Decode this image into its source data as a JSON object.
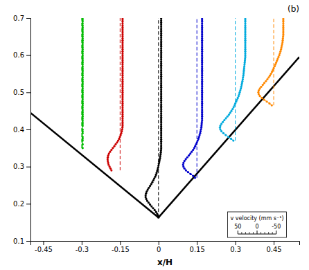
{
  "chart_data": {
    "type": "line",
    "title": "(b)",
    "xlabel": "x/H",
    "xlim": [
      -0.5,
      0.55
    ],
    "ylim": [
      0.1,
      0.7
    ],
    "xticks": [
      -0.45,
      -0.3,
      -0.15,
      0,
      0.15,
      0.3,
      0.45
    ],
    "yticks": [
      0.1,
      0.2,
      0.3,
      0.4,
      0.5,
      0.6,
      0.7
    ],
    "series": [
      {
        "color": "#000000",
        "line_style": "solid",
        "x": [
          -0.5,
          0.0
        ],
        "values": [
          0.445,
          0.163
        ]
      },
      {
        "color": "#000000",
        "line_style": "solid",
        "x": [
          0.0,
          0.55
        ],
        "values": [
          0.163,
          0.595
        ]
      },
      {
        "color": "#00bb00",
        "line_style": "dashed",
        "x": [
          -0.3,
          -0.3
        ],
        "values": [
          0.35,
          0.7
        ]
      },
      {
        "color": "#00bb00",
        "line_style": "solid",
        "marker": "circle",
        "x": [
          -0.29625,
          -0.29625,
          -0.29625,
          -0.29625,
          -0.29625,
          -0.29625,
          -0.29625,
          -0.29625,
          -0.29625,
          -0.29625,
          -0.29625,
          -0.29625,
          -0.29625,
          -0.29625,
          -0.29625,
          -0.29625,
          -0.29625,
          -0.29625,
          -0.29625,
          -0.29625,
          -0.29625,
          -0.29625,
          -0.29625,
          -0.29625,
          -0.29625,
          -0.29625,
          -0.29625,
          -0.29625,
          -0.29625,
          -0.29625,
          -0.29625,
          -0.29625,
          -0.29625,
          -0.29625,
          -0.29625,
          -0.29625,
          -0.29625,
          -0.29625,
          -0.29625,
          -0.29625,
          -0.29625,
          -0.29625,
          -0.29625,
          -0.29625,
          -0.29625,
          -0.29625,
          -0.29625,
          -0.29625,
          -0.29625,
          -0.29625,
          -0.29625,
          -0.29625,
          -0.29625,
          -0.29625,
          -0.29625,
          -0.29625,
          -0.29625,
          -0.29625,
          -0.29625,
          -0.29625,
          -0.29625,
          -0.29625,
          -0.29625,
          -0.29625,
          -0.29625,
          -0.29625,
          -0.29625
        ],
        "values": [
          0.35,
          0.36,
          0.37,
          0.375,
          0.38,
          0.39,
          0.395,
          0.4,
          0.41,
          0.415,
          0.42,
          0.425,
          0.43,
          0.435,
          0.44,
          0.445,
          0.45,
          0.455,
          0.46,
          0.465,
          0.47,
          0.475,
          0.48,
          0.485,
          0.49,
          0.495,
          0.5,
          0.505,
          0.51,
          0.515,
          0.52,
          0.525,
          0.53,
          0.535,
          0.54,
          0.545,
          0.55,
          0.555,
          0.56,
          0.565,
          0.57,
          0.575,
          0.58,
          0.585,
          0.59,
          0.595,
          0.6,
          0.605,
          0.61,
          0.615,
          0.62,
          0.625,
          0.63,
          0.635,
          0.64,
          0.645,
          0.65,
          0.655,
          0.66,
          0.665,
          0.67,
          0.675,
          0.68,
          0.685,
          0.69,
          0.695,
          0.7
        ]
      },
      {
        "color": "#cc0000",
        "line_style": "dashed",
        "x": [
          -0.15,
          -0.15
        ],
        "values": [
          0.29,
          0.7
        ]
      },
      {
        "color": "#cc0000",
        "line_style": "solid",
        "marker": "circle",
        "x": [
          -0.18375,
          -0.1875,
          -0.19125,
          -0.195,
          -0.1965,
          -0.198,
          -0.19875,
          -0.198,
          -0.1965,
          -0.1935,
          -0.189,
          -0.18375,
          -0.1785,
          -0.1725,
          -0.16725,
          -0.162,
          -0.1575,
          -0.15375,
          -0.15075,
          -0.14775,
          -0.1455,
          -0.14325,
          -0.14175,
          -0.141,
          -0.14025,
          -0.14025,
          -0.14025,
          -0.14025,
          -0.14025,
          -0.14025,
          -0.14025,
          -0.14025,
          -0.14025,
          -0.14025,
          -0.14025,
          -0.14025,
          -0.14025,
          -0.14025,
          -0.14025,
          -0.14025,
          -0.14025,
          -0.14025,
          -0.14025,
          -0.14025,
          -0.14025,
          -0.14025,
          -0.14025,
          -0.14025,
          -0.14025,
          -0.14025,
          -0.14025,
          -0.14025,
          -0.14025,
          -0.14025,
          -0.14025,
          -0.14025,
          -0.14025,
          -0.14025,
          -0.14025,
          -0.14025,
          -0.14025,
          -0.14025,
          -0.14025,
          -0.14025,
          -0.14025,
          -0.14025,
          -0.14025,
          -0.14025,
          -0.14025,
          -0.14025,
          -0.14025,
          -0.14025,
          -0.14025,
          -0.14025,
          -0.14025,
          -0.14025,
          -0.14025,
          -0.14025,
          -0.14025,
          -0.14025,
          -0.14025,
          -0.14025,
          -0.14025
        ],
        "values": [
          0.29,
          0.295,
          0.3,
          0.305,
          0.31,
          0.315,
          0.32,
          0.325,
          0.33,
          0.335,
          0.34,
          0.345,
          0.35,
          0.355,
          0.36,
          0.365,
          0.37,
          0.375,
          0.38,
          0.385,
          0.39,
          0.395,
          0.4,
          0.405,
          0.41,
          0.415,
          0.42,
          0.425,
          0.43,
          0.435,
          0.44,
          0.445,
          0.45,
          0.455,
          0.46,
          0.465,
          0.47,
          0.475,
          0.48,
          0.485,
          0.49,
          0.495,
          0.5,
          0.505,
          0.51,
          0.515,
          0.52,
          0.525,
          0.53,
          0.535,
          0.54,
          0.545,
          0.55,
          0.555,
          0.56,
          0.565,
          0.57,
          0.575,
          0.58,
          0.585,
          0.59,
          0.595,
          0.6,
          0.605,
          0.61,
          0.615,
          0.62,
          0.625,
          0.63,
          0.635,
          0.64,
          0.645,
          0.65,
          0.655,
          0.66,
          0.665,
          0.67,
          0.675,
          0.68,
          0.685,
          0.69,
          0.695,
          0.7
        ]
      },
      {
        "color": "#000000",
        "line_style": "dashed",
        "x": [
          0.0,
          0.0
        ],
        "values": [
          0.163,
          0.7
        ]
      },
      {
        "color": "#000000",
        "line_style": "solid",
        "marker": "circle",
        "x": [
          0,
          -0.00225,
          -0.00525,
          -0.00975,
          -0.015,
          -0.021,
          -0.027,
          -0.033,
          -0.039,
          -0.04425,
          -0.048,
          -0.05025,
          -0.05025,
          -0.04875,
          -0.04575,
          -0.042,
          -0.0375,
          -0.033,
          -0.0285,
          -0.024,
          -0.02025,
          -0.0165,
          -0.01275,
          -0.00975,
          -0.0075,
          -0.00525,
          -0.003,
          -0.0015,
          0,
          0.0015,
          0.003,
          0.0045,
          0.006,
          0.00675,
          0.00825,
          0.009,
          0.00975,
          0.0105,
          0.0105,
          0.0105,
          0.0105,
          0.0105,
          0.0105,
          0.0105,
          0.0105,
          0.0105,
          0.0105,
          0.0105,
          0.0105,
          0.0105,
          0.0105,
          0.0105,
          0.0105,
          0.0105,
          0.0105,
          0.0105,
          0.0105,
          0.0105,
          0.0105,
          0.0105,
          0.0105,
          0.0105,
          0.0105,
          0.0105,
          0.0105,
          0.0105,
          0.0105,
          0.0105,
          0.0105,
          0.0105,
          0.0105,
          0.0105,
          0.0105,
          0.0105,
          0.0105,
          0.0105,
          0.0105,
          0.0105,
          0.0105,
          0.0105,
          0.0105,
          0.0105,
          0.0105,
          0.0105,
          0.0105,
          0.0105,
          0.0105,
          0.0105,
          0.0105,
          0.0105,
          0.0105,
          0.0105,
          0.0105,
          0.0105,
          0.0105,
          0.0105,
          0.0105,
          0.0105,
          0.0105,
          0.0105,
          0.0105,
          0.0105,
          0.0105,
          0.0105,
          0.0105,
          0.0105,
          0.0105,
          0.0105
        ],
        "values": [
          0.163,
          0.168,
          0.173,
          0.178,
          0.183,
          0.188,
          0.193,
          0.198,
          0.203,
          0.208,
          0.213,
          0.218,
          0.223,
          0.228,
          0.233,
          0.238,
          0.243,
          0.248,
          0.253,
          0.258,
          0.263,
          0.268,
          0.273,
          0.278,
          0.283,
          0.288,
          0.293,
          0.298,
          0.303,
          0.308,
          0.313,
          0.318,
          0.323,
          0.328,
          0.333,
          0.338,
          0.343,
          0.348,
          0.353,
          0.358,
          0.363,
          0.368,
          0.373,
          0.378,
          0.383,
          0.388,
          0.393,
          0.398,
          0.403,
          0.408,
          0.413,
          0.418,
          0.423,
          0.428,
          0.433,
          0.438,
          0.443,
          0.448,
          0.453,
          0.458,
          0.463,
          0.468,
          0.473,
          0.478,
          0.483,
          0.488,
          0.493,
          0.498,
          0.503,
          0.508,
          0.513,
          0.518,
          0.523,
          0.528,
          0.533,
          0.538,
          0.543,
          0.548,
          0.553,
          0.558,
          0.563,
          0.568,
          0.573,
          0.578,
          0.583,
          0.588,
          0.593,
          0.598,
          0.603,
          0.608,
          0.613,
          0.618,
          0.623,
          0.628,
          0.633,
          0.638,
          0.643,
          0.648,
          0.653,
          0.658,
          0.663,
          0.668,
          0.673,
          0.678,
          0.683,
          0.688,
          0.693,
          0.698
        ]
      },
      {
        "color": "#0000cc",
        "line_style": "dashed",
        "x": [
          0.15,
          0.15
        ],
        "values": [
          0.27,
          0.7
        ]
      },
      {
        "color": "#0000cc",
        "line_style": "solid",
        "marker": "circle",
        "x": [
          0.1425,
          0.135,
          0.12525,
          0.1155,
          0.10725,
          0.10125,
          0.0975,
          0.096,
          0.0975,
          0.10125,
          0.1065,
          0.1125,
          0.1185,
          0.1245,
          0.12975,
          0.135,
          0.1395,
          0.14325,
          0.147,
          0.15,
          0.153,
          0.156,
          0.15825,
          0.1605,
          0.16275,
          0.16425,
          0.16575,
          0.16725,
          0.168,
          0.16875,
          0.1695,
          0.17025,
          0.17025,
          0.17025,
          0.17025,
          0.17025,
          0.17025,
          0.17025,
          0.17025,
          0.17025,
          0.17025,
          0.17025,
          0.17025,
          0.17025,
          0.17025,
          0.17025,
          0.17025,
          0.17025,
          0.17025,
          0.17025,
          0.17025,
          0.17025,
          0.17025,
          0.17025,
          0.17025,
          0.17025,
          0.17025,
          0.17025,
          0.17025,
          0.17025,
          0.17025,
          0.17025,
          0.17025,
          0.17025,
          0.17025,
          0.17025,
          0.17025,
          0.17025,
          0.17025,
          0.17025,
          0.17025,
          0.17025,
          0.17025,
          0.17025,
          0.17025,
          0.17025,
          0.17025,
          0.17025,
          0.17025,
          0.17025,
          0.17025,
          0.17025,
          0.17025,
          0.17025,
          0.17025,
          0.17025,
          0.17025
        ],
        "values": [
          0.27,
          0.275,
          0.28,
          0.285,
          0.29,
          0.295,
          0.3,
          0.305,
          0.31,
          0.315,
          0.32,
          0.325,
          0.33,
          0.335,
          0.34,
          0.345,
          0.35,
          0.355,
          0.36,
          0.365,
          0.37,
          0.375,
          0.38,
          0.385,
          0.39,
          0.395,
          0.4,
          0.405,
          0.41,
          0.415,
          0.42,
          0.425,
          0.43,
          0.435,
          0.44,
          0.445,
          0.45,
          0.455,
          0.46,
          0.465,
          0.47,
          0.475,
          0.48,
          0.485,
          0.49,
          0.495,
          0.5,
          0.505,
          0.51,
          0.515,
          0.52,
          0.525,
          0.53,
          0.535,
          0.54,
          0.545,
          0.55,
          0.555,
          0.56,
          0.565,
          0.57,
          0.575,
          0.58,
          0.585,
          0.59,
          0.595,
          0.6,
          0.605,
          0.61,
          0.615,
          0.62,
          0.625,
          0.63,
          0.635,
          0.64,
          0.645,
          0.65,
          0.655,
          0.66,
          0.665,
          0.67,
          0.675,
          0.68,
          0.685,
          0.69,
          0.695,
          0.7
        ]
      },
      {
        "color": "#00aadd",
        "line_style": "dashed",
        "x": [
          0.3,
          0.3
        ],
        "values": [
          0.37,
          0.7
        ]
      },
      {
        "color": "#00aadd",
        "line_style": "solid",
        "marker": "circle",
        "x": [
          0.2925,
          0.2835,
          0.273,
          0.2625,
          0.2535,
          0.246,
          0.2415,
          0.24,
          0.2415,
          0.246,
          0.25125,
          0.25725,
          0.26325,
          0.26925,
          0.27525,
          0.2805,
          0.285,
          0.2895,
          0.29325,
          0.297,
          0.3,
          0.30375,
          0.30675,
          0.30975,
          0.31275,
          0.315,
          0.31725,
          0.3195,
          0.32175,
          0.32325,
          0.32475,
          0.32625,
          0.32775,
          0.32925,
          0.33,
          0.3315,
          0.33225,
          0.333,
          0.33375,
          0.3345,
          0.33525,
          0.336,
          0.33675,
          0.3375,
          0.33825,
          0.339,
          0.339,
          0.339,
          0.339,
          0.339,
          0.339,
          0.339,
          0.339,
          0.339,
          0.339,
          0.339,
          0.339,
          0.339,
          0.339,
          0.339,
          0.339,
          0.339,
          0.339,
          0.339,
          0.339,
          0.339,
          0.339
        ],
        "values": [
          0.37,
          0.375,
          0.38,
          0.385,
          0.39,
          0.395,
          0.4,
          0.405,
          0.41,
          0.415,
          0.42,
          0.425,
          0.43,
          0.435,
          0.44,
          0.445,
          0.45,
          0.455,
          0.46,
          0.465,
          0.47,
          0.475,
          0.48,
          0.485,
          0.49,
          0.495,
          0.5,
          0.505,
          0.51,
          0.515,
          0.52,
          0.525,
          0.53,
          0.535,
          0.54,
          0.545,
          0.55,
          0.555,
          0.56,
          0.565,
          0.57,
          0.575,
          0.58,
          0.585,
          0.59,
          0.595,
          0.6,
          0.605,
          0.61,
          0.615,
          0.62,
          0.625,
          0.63,
          0.635,
          0.64,
          0.645,
          0.65,
          0.655,
          0.66,
          0.665,
          0.67,
          0.675,
          0.68,
          0.685,
          0.69,
          0.695,
          0.7
        ]
      },
      {
        "color": "#ff8800",
        "line_style": "dashed",
        "x": [
          0.45,
          0.45
        ],
        "values": [
          0.465,
          0.7
        ]
      },
      {
        "color": "#ff8800",
        "line_style": "solid",
        "marker": "circle",
        "x": [
          0.4425,
          0.4335,
          0.423,
          0.4125,
          0.4035,
          0.396,
          0.3915,
          0.39,
          0.3915,
          0.396,
          0.40125,
          0.40725,
          0.41325,
          0.41925,
          0.42525,
          0.4305,
          0.435,
          0.4395,
          0.44325,
          0.447,
          0.45,
          0.45375,
          0.45675,
          0.45975,
          0.46275,
          0.46575,
          0.46875,
          0.47175,
          0.474,
          0.47625,
          0.4785,
          0.48,
          0.4815,
          0.483,
          0.4845,
          0.48525,
          0.486,
          0.48675,
          0.4875,
          0.4875,
          0.4875,
          0.4875,
          0.4875,
          0.4875,
          0.4875,
          0.4875,
          0.4875,
          0.4875
        ],
        "values": [
          0.465,
          0.47,
          0.475,
          0.48,
          0.485,
          0.49,
          0.495,
          0.5,
          0.505,
          0.51,
          0.515,
          0.52,
          0.525,
          0.53,
          0.535,
          0.54,
          0.545,
          0.55,
          0.555,
          0.56,
          0.565,
          0.57,
          0.575,
          0.58,
          0.585,
          0.59,
          0.595,
          0.6,
          0.605,
          0.61,
          0.615,
          0.62,
          0.625,
          0.63,
          0.635,
          0.64,
          0.645,
          0.65,
          0.655,
          0.66,
          0.665,
          0.67,
          0.675,
          0.68,
          0.685,
          0.69,
          0.695,
          0.7
        ]
      }
    ],
    "scale_bar": {
      "title": "v velocity (mm s⁻¹)",
      "xlim": [
        0.31,
        0.46
      ],
      "vlim": [
        50,
        -50
      ],
      "ticks": [
        50,
        0,
        -50
      ],
      "minor_ticks": [
        40,
        30,
        20,
        10,
        -10,
        -20,
        -30,
        -40
      ]
    }
  }
}
